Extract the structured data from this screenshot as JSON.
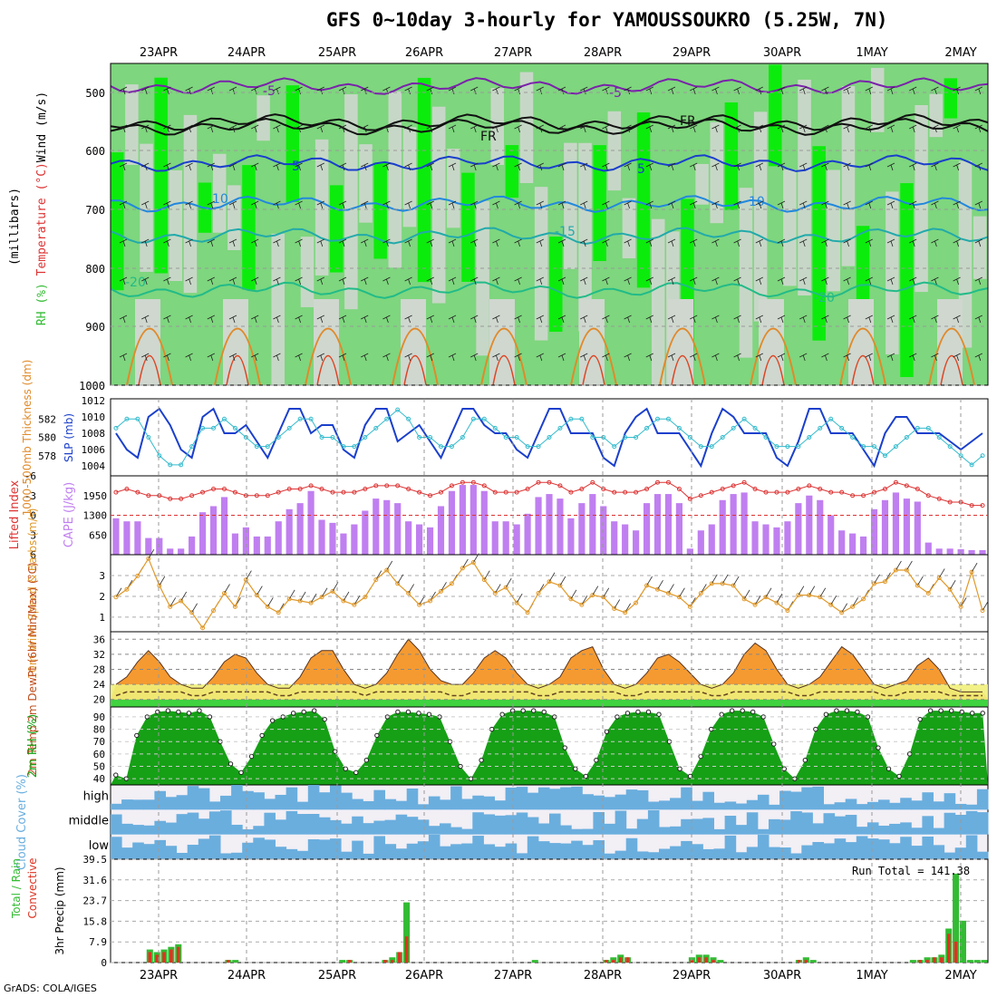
{
  "title": "GFS 0~10day 3-hourly for YAMOUSSOUKRO (5.25W, 7N)",
  "footer": "GrADS: COLA/IGES",
  "colors": {
    "rh_light": "#cfd7cf",
    "rh_mid": "#7fd87f",
    "rh_high": "#00ee00",
    "slp": "#1a3fcc",
    "thickness": "#33bbcc",
    "cape": "#c07ff0",
    "li": "#dd3333",
    "wind10": "#e0992a",
    "temp_hot": "#dd2200",
    "temp_mid": "#f59a30",
    "dew_band": "#f0f07a",
    "rh2m": "#16a016",
    "cloud": "#6aaede",
    "precip_total": "#33bb33",
    "precip_conv": "#dd3322"
  },
  "chart_data": [
    {
      "type": "contour",
      "name": "upper-air",
      "dates": [
        "23APR",
        "24APR",
        "25APR",
        "26APR",
        "27APR",
        "28APR",
        "29APR",
        "30APR",
        "1MAY",
        "2MAY"
      ],
      "ylabel": "(millibars)",
      "y_ticks": [
        500,
        600,
        700,
        800,
        900,
        1000
      ],
      "legend": {
        "wind": "Wind (m/s)",
        "temperature": "Temperature (°C)",
        "rh": "RH (%)"
      },
      "contour_labels": [
        "-5",
        "-5",
        "FR",
        "FR",
        "5",
        "5",
        "10",
        "10",
        "-15",
        "-20",
        "-20"
      ]
    },
    {
      "type": "line",
      "name": "slp-thickness",
      "ylabel_left": "1000-500mb Thickness (dm)",
      "ylabel_right": "SLP (mb)",
      "left_ticks": [
        578,
        580,
        582
      ],
      "right_ticks": [
        1004,
        1006,
        1008,
        1010,
        1012
      ],
      "slp": [
        1008,
        1006,
        1005,
        1010,
        1011,
        1009,
        1006,
        1005,
        1010,
        1011,
        1008,
        1008,
        1009,
        1007,
        1005,
        1008,
        1011,
        1011,
        1008,
        1009,
        1009,
        1006,
        1005,
        1009,
        1011,
        1011,
        1007,
        1008,
        1009,
        1007,
        1005,
        1008,
        1011,
        1011,
        1009,
        1008,
        1008,
        1006,
        1005,
        1008,
        1011,
        1011,
        1008,
        1008,
        1008,
        1005,
        1004,
        1008,
        1010,
        1011,
        1008,
        1008,
        1008,
        1006,
        1004,
        1008,
        1011,
        1010,
        1008,
        1008,
        1008,
        1005,
        1004,
        1007,
        1011,
        1011,
        1008,
        1008,
        1008,
        1006,
        1004,
        1008,
        1010,
        1010,
        1008,
        1008,
        1008,
        1007,
        1006,
        1007,
        1008
      ],
      "thickness": [
        581,
        582,
        582,
        580,
        578,
        577,
        577,
        579,
        581,
        581,
        582,
        581,
        580,
        579,
        579,
        580,
        581,
        582,
        582,
        580,
        580,
        579,
        579,
        580,
        581,
        582,
        583,
        582,
        580,
        580,
        579,
        579,
        580,
        582,
        582,
        581,
        580,
        580,
        579,
        579,
        580,
        581,
        582,
        582,
        580,
        580,
        579,
        580,
        580,
        581,
        582,
        582,
        581,
        580,
        579,
        579,
        580,
        581,
        582,
        581,
        580,
        579,
        579,
        579,
        580,
        581,
        582,
        581,
        580,
        579,
        579,
        578,
        579,
        580,
        581,
        581,
        580,
        579,
        578,
        577,
        578
      ]
    },
    {
      "type": "bar+line",
      "name": "cape-li",
      "ylabel_left": "Lifted Index",
      "ylabel_right": "CAPE (J/kg)",
      "li_ticks": [
        "-6",
        "-3",
        "0",
        "3",
        "6"
      ],
      "cape_ticks": [
        "650",
        "1300",
        "1950"
      ],
      "cape": [
        1200,
        1100,
        1100,
        550,
        550,
        200,
        200,
        600,
        1400,
        1600,
        1900,
        700,
        900,
        600,
        600,
        1100,
        1500,
        1700,
        2100,
        1150,
        1050,
        700,
        1000,
        1450,
        1850,
        1800,
        1700,
        1100,
        1000,
        900,
        1600,
        2100,
        2300,
        2300,
        2100,
        1100,
        1100,
        1000,
        1350,
        1900,
        2000,
        1850,
        1200,
        1700,
        2000,
        1600,
        1100,
        1000,
        800,
        1700,
        2000,
        2000,
        1700,
        200,
        800,
        1000,
        1800,
        2000,
        2050,
        1100,
        1000,
        900,
        1100,
        1700,
        1950,
        1800,
        1300,
        800,
        700,
        600,
        1500,
        1800,
        2050,
        1850,
        1750,
        400,
        200,
        200,
        180,
        150,
        150
      ],
      "li": [
        -3.5,
        -4,
        -3.5,
        -3,
        -3,
        -2.5,
        -2.5,
        -3,
        -3.5,
        -4,
        -4,
        -3.5,
        -3,
        -3,
        -3,
        -3.5,
        -4,
        -4,
        -4.5,
        -4,
        -3.5,
        -3.5,
        -3.5,
        -4,
        -4.5,
        -4.5,
        -4.5,
        -4,
        -3.5,
        -3,
        -3.5,
        -4.5,
        -5,
        -5,
        -4.5,
        -3.5,
        -3.5,
        -3.5,
        -4,
        -5,
        -5,
        -4.5,
        -3.5,
        -4,
        -5,
        -4,
        -3.5,
        -3.5,
        -3.5,
        -4,
        -5,
        -5,
        -4,
        -2.5,
        -3,
        -3.5,
        -4,
        -4.5,
        -5,
        -4,
        -3.5,
        -3.5,
        -3.5,
        -4,
        -4.5,
        -4,
        -3.5,
        -3.5,
        -3,
        -3,
        -3.5,
        -4,
        -5,
        -4.5,
        -4,
        -3,
        -2.5,
        -2,
        -2,
        -1.5,
        -1.5
      ]
    },
    {
      "type": "line",
      "name": "wind10",
      "ylabel": "10m Wind Speed & Barbs (m/s)",
      "y_ticks": [
        "1",
        "2",
        "3"
      ],
      "speed": [
        1.8,
        2.2,
        2.9,
        3.8,
        2.4,
        1.3,
        1.6,
        1.0,
        0.2,
        1.1,
        2.0,
        1.3,
        2.7,
        1.9,
        1.3,
        1.0,
        1.7,
        1.6,
        1.5,
        1.8,
        2.1,
        1.6,
        1.4,
        1.8,
        2.7,
        3.2,
        2.5,
        2.0,
        1.4,
        1.6,
        2.1,
        2.5,
        3.3,
        3.6,
        2.7,
        2.0,
        2.3,
        1.5,
        1.0,
        2.0,
        2.6,
        2.4,
        1.7,
        1.4,
        1.9,
        1.8,
        1.2,
        1.0,
        1.5,
        2.4,
        2.2,
        2.0,
        1.8,
        1.3,
        2.0,
        2.5,
        2.5,
        2.4,
        1.7,
        1.4,
        1.8,
        1.5,
        1.1,
        1.9,
        1.9,
        1.8,
        1.4,
        1.0,
        1.3,
        1.7,
        2.5,
        2.6,
        3.2,
        3.2,
        2.4,
        2.0,
        2.8,
        2.2,
        1.3,
        3.1,
        1.1
      ]
    },
    {
      "type": "area",
      "name": "temp2m",
      "ylabel": "2m Temp 2m DewPt (6hr Min/Max) (°C)",
      "y_ticks": [
        "20",
        "24",
        "28",
        "32",
        "36"
      ],
      "temp": [
        24,
        26,
        30,
        33,
        30,
        26,
        24,
        23,
        23,
        26,
        30,
        32,
        31,
        27,
        24,
        23,
        23,
        26,
        31,
        33,
        33,
        28,
        24,
        23,
        24,
        27,
        32,
        36,
        33,
        28,
        25,
        24,
        24,
        27,
        31,
        33,
        31,
        27,
        24,
        23,
        24,
        26,
        31,
        33,
        34,
        28,
        24,
        23,
        24,
        27,
        31,
        32,
        30,
        27,
        24,
        23,
        24,
        27,
        32,
        35,
        33,
        28,
        24,
        23,
        24,
        26,
        30,
        34,
        32,
        28,
        24,
        23,
        24,
        25,
        29,
        31,
        28,
        23,
        22,
        22,
        22
      ],
      "dew": [
        21,
        22,
        22,
        22,
        22,
        22,
        22,
        21,
        21,
        22,
        22,
        22,
        22,
        22,
        22,
        21,
        21,
        22,
        22,
        22,
        22,
        22,
        22,
        21,
        22,
        22,
        22,
        22,
        22,
        22,
        22,
        21,
        21,
        22,
        22,
        22,
        22,
        22,
        22,
        21,
        21,
        22,
        22,
        22,
        22,
        22,
        22,
        21,
        21,
        22,
        22,
        22,
        22,
        22,
        22,
        21,
        21,
        22,
        22,
        22,
        22,
        22,
        22,
        21,
        21,
        22,
        22,
        22,
        22,
        22,
        22,
        21,
        21,
        22,
        22,
        22,
        22,
        21,
        21,
        21,
        21
      ]
    },
    {
      "type": "area",
      "name": "rh2m",
      "ylabel": "2m RH (%)",
      "y_ticks": [
        "40",
        "50",
        "60",
        "70",
        "80",
        "90"
      ],
      "rh": [
        43,
        40,
        75,
        90,
        94,
        95,
        94,
        93,
        95,
        90,
        70,
        52,
        45,
        58,
        75,
        87,
        90,
        93,
        94,
        95,
        88,
        62,
        48,
        45,
        55,
        75,
        90,
        94,
        94,
        93,
        92,
        90,
        70,
        50,
        40,
        55,
        80,
        92,
        95,
        95,
        95,
        94,
        90,
        65,
        48,
        42,
        55,
        78,
        90,
        93,
        94,
        94,
        92,
        70,
        48,
        42,
        58,
        80,
        92,
        95,
        95,
        94,
        90,
        68,
        48,
        40,
        55,
        80,
        92,
        95,
        95,
        94,
        90,
        65,
        48,
        42,
        60,
        88,
        95,
        95,
        95,
        94,
        93,
        93
      ]
    },
    {
      "type": "heatmap",
      "name": "cloud-cover",
      "ylabel": "Cloud Cover (%)",
      "levels": [
        "high",
        "middle",
        "low"
      ]
    },
    {
      "type": "bar",
      "name": "precip",
      "ylabel": "3hr Precip (mm)",
      "legend": [
        "Total / Rain",
        "Convective"
      ],
      "y_ticks": [
        "0",
        "7.9",
        "15.8",
        "23.7",
        "31.6",
        "39.5"
      ],
      "run_total_label": "Run Total = 141.38",
      "total": [
        0,
        0,
        0,
        0,
        0,
        5,
        4,
        5,
        6,
        7,
        0,
        0,
        0,
        0,
        0,
        0,
        1,
        1,
        0,
        0,
        0,
        0,
        0,
        0,
        0,
        0,
        0,
        0,
        0,
        0,
        0,
        0,
        1,
        1,
        0,
        0,
        0,
        0,
        1,
        2,
        4,
        23,
        0,
        0,
        0,
        0,
        0,
        0,
        0,
        0,
        0,
        0,
        0,
        0,
        0,
        0,
        0,
        0,
        0,
        1,
        0,
        0,
        0,
        0,
        0,
        0,
        0,
        0,
        0,
        1,
        2,
        3,
        2,
        0,
        0,
        0,
        0,
        0,
        0,
        0,
        0,
        2,
        3,
        3,
        2,
        1,
        0,
        0,
        0,
        0,
        0,
        0,
        0,
        0,
        0,
        0,
        1,
        2,
        1,
        0,
        0,
        0,
        0,
        0,
        0,
        0,
        0,
        0,
        0,
        0,
        0,
        0,
        1,
        1,
        2,
        2,
        3,
        13,
        34,
        16,
        1,
        1,
        1
      ],
      "convective": [
        0,
        0,
        0,
        0,
        0,
        4,
        3,
        4,
        5,
        6,
        0,
        0,
        0,
        0,
        0,
        0,
        1,
        0,
        0,
        0,
        0,
        0,
        0,
        0,
        0,
        0,
        0,
        0,
        0,
        0,
        0,
        0,
        0,
        1,
        0,
        0,
        0,
        0,
        1,
        1,
        4,
        10,
        0,
        0,
        0,
        0,
        0,
        0,
        0,
        0,
        0,
        0,
        0,
        0,
        0,
        0,
        0,
        0,
        0,
        0,
        0,
        0,
        0,
        0,
        0,
        0,
        0,
        0,
        0,
        1,
        1,
        2,
        2,
        0,
        0,
        0,
        0,
        0,
        0,
        0,
        0,
        1,
        2,
        2,
        1,
        0,
        0,
        0,
        0,
        0,
        0,
        0,
        0,
        0,
        0,
        0,
        1,
        1,
        0,
        0,
        0,
        0,
        0,
        0,
        0,
        0,
        0,
        0,
        0,
        0,
        0,
        0,
        0,
        1,
        1,
        2,
        2,
        11,
        8,
        0,
        0,
        0,
        0
      ]
    }
  ]
}
